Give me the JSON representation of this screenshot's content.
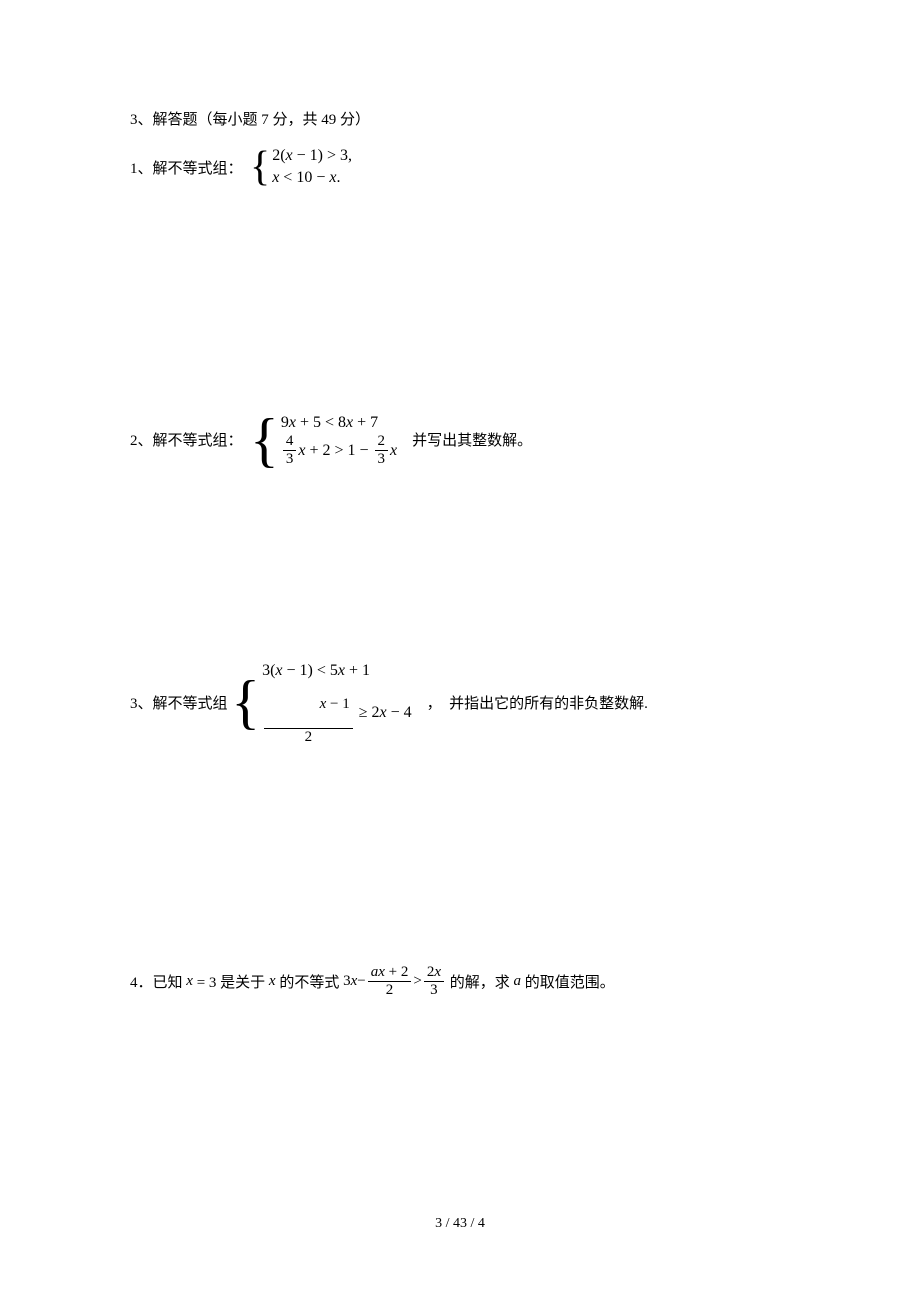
{
  "section": {
    "title": "3、解答题（每小题 7 分，共 49 分）"
  },
  "p1": {
    "label": "1、解不等式组：  ",
    "line1_a": "2(",
    "line1_x1": "x",
    "line1_b": " − 1) > 3,",
    "line2_x1": "x",
    "line2_a": " < 10 − ",
    "line2_x2": "x",
    "line2_b": "."
  },
  "p2": {
    "label": "2、解不等式组：  ",
    "line1_a": "9",
    "line1_x1": "x",
    "line1_b": " + 5 < 8",
    "line1_x2": "x",
    "line1_c": " + 7",
    "line2_f1_num": "4",
    "line2_f1_den": "3",
    "line2_x1": "x",
    "line2_a": " + 2 > 1 − ",
    "line2_f2_num": "2",
    "line2_f2_den": "3",
    "line2_x2": "x",
    "trail": "    并写出其整数解。"
  },
  "p3": {
    "label": "3、解不等式组 ",
    "line1_a": "3(",
    "line1_x1": "x",
    "line1_b": " − 1) < 5",
    "line1_x2": "x",
    "line1_c": " + 1",
    "line2_f_num_x": "x",
    "line2_f_num_b": " − 1",
    "line2_f_den": "2",
    "line2_a": " ≥ 2",
    "line2_x2": "x",
    "line2_b": " − 4",
    "trail": "    ，  并指出它的所有的非负整数解."
  },
  "p4": {
    "label": "4．已知 ",
    "eq_x": "x",
    "eq_a": " = 3 是关于 ",
    "eq_x2": "x",
    "eq_b": " 的不等式 ",
    "lhs_a": "3",
    "lhs_x": "x",
    "lhs_b": " − ",
    "f1_num_a": "a",
    "f1_num_x": "x",
    "f1_num_b": " + 2",
    "f1_den": "2",
    "mid": " > ",
    "f2_num_a": "2",
    "f2_num_x": "x",
    "f2_den": "3",
    "trail": " 的解，求 ",
    "var_a": "a",
    "trail2": " 的取值范围。"
  },
  "footer": {
    "text": "3  / 43 / 4"
  }
}
